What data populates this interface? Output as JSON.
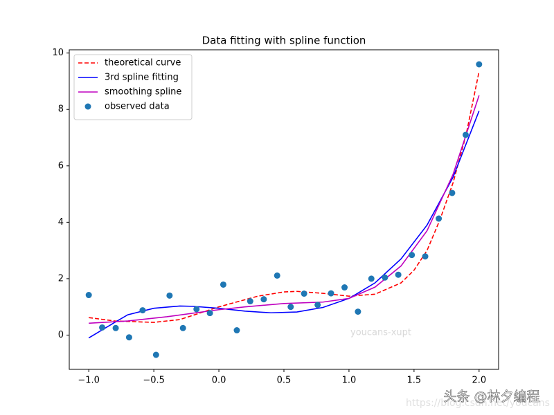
{
  "chart_data": {
    "type": "line",
    "title": "Data fitting with spline function",
    "xlim": [
      -1.15,
      2.15
    ],
    "ylim": [
      -1.215,
      10.115
    ],
    "xticks": [
      {
        "value": -1,
        "label": "−1.0"
      },
      {
        "value": -0.5,
        "label": "−0.5"
      },
      {
        "value": 0,
        "label": "0.0"
      },
      {
        "value": 0.5,
        "label": "0.5"
      },
      {
        "value": 1,
        "label": "1.0"
      },
      {
        "value": 1.5,
        "label": "1.5"
      },
      {
        "value": 2,
        "label": "2.0"
      }
    ],
    "yticks": [
      0,
      2,
      4,
      6,
      8,
      10
    ],
    "grid": false,
    "legend": "upper-left",
    "series": [
      {
        "name": "theoretical curve",
        "color": "#ff0000",
        "linestyle": "dashed",
        "kind": "line",
        "x": [
          -1,
          -0.8,
          -0.5,
          -0.3,
          0,
          0.3,
          0.5,
          0.6,
          0.8,
          1.0,
          1.2,
          1.4,
          1.5,
          1.6,
          1.7,
          1.8,
          1.9,
          2.0
        ],
        "values": [
          0.62,
          0.5,
          0.45,
          0.55,
          1.0,
          1.38,
          1.53,
          1.55,
          1.48,
          1.38,
          1.45,
          1.85,
          2.3,
          3.0,
          4.1,
          5.4,
          7.1,
          9.35
        ]
      },
      {
        "name": "3rd spline fitting",
        "color": "#0000ff",
        "linestyle": "solid",
        "kind": "line",
        "x": [
          -1,
          -0.8,
          -0.7,
          -0.5,
          -0.3,
          -0.2,
          0,
          0.2,
          0.4,
          0.6,
          0.8,
          1.0,
          1.2,
          1.4,
          1.6,
          1.8,
          2.0
        ],
        "values": [
          -0.1,
          0.45,
          0.72,
          0.95,
          1.03,
          1.02,
          0.95,
          0.85,
          0.79,
          0.82,
          0.98,
          1.3,
          1.85,
          2.7,
          3.9,
          5.6,
          7.95
        ]
      },
      {
        "name": "smoothing spline",
        "color": "#bf00bf",
        "linestyle": "solid",
        "kind": "line",
        "x": [
          -1,
          -0.7,
          -0.4,
          0,
          0.2,
          0.5,
          0.8,
          1.0,
          1.2,
          1.4,
          1.6,
          1.8,
          2.0
        ],
        "values": [
          0.42,
          0.5,
          0.65,
          0.9,
          1.0,
          1.12,
          1.17,
          1.3,
          1.7,
          2.45,
          3.7,
          5.7,
          8.5
        ]
      },
      {
        "name": "observed data",
        "color": "#1f77b4",
        "kind": "scatter",
        "x": [
          -1,
          -0.897,
          -0.793,
          -0.69,
          -0.586,
          -0.483,
          -0.379,
          -0.276,
          -0.172,
          -0.069,
          0.034,
          0.138,
          0.241,
          0.345,
          0.448,
          0.552,
          0.655,
          0.759,
          0.862,
          0.966,
          1.069,
          1.172,
          1.276,
          1.379,
          1.483,
          1.586,
          1.69,
          1.793,
          1.897,
          2.0
        ],
        "values": [
          1.42,
          0.27,
          0.25,
          -0.08,
          0.88,
          -0.7,
          1.4,
          0.25,
          0.92,
          0.78,
          1.79,
          0.17,
          1.2,
          1.27,
          2.11,
          1.0,
          1.47,
          1.07,
          1.48,
          1.69,
          0.83,
          2.0,
          2.04,
          2.14,
          2.84,
          2.79,
          4.13,
          5.04,
          7.1,
          9.6
        ]
      }
    ],
    "annotations": [
      "youcans-xupt",
      "https://blog.csdn.net/youcans",
      "头条 @林夕编程"
    ]
  }
}
